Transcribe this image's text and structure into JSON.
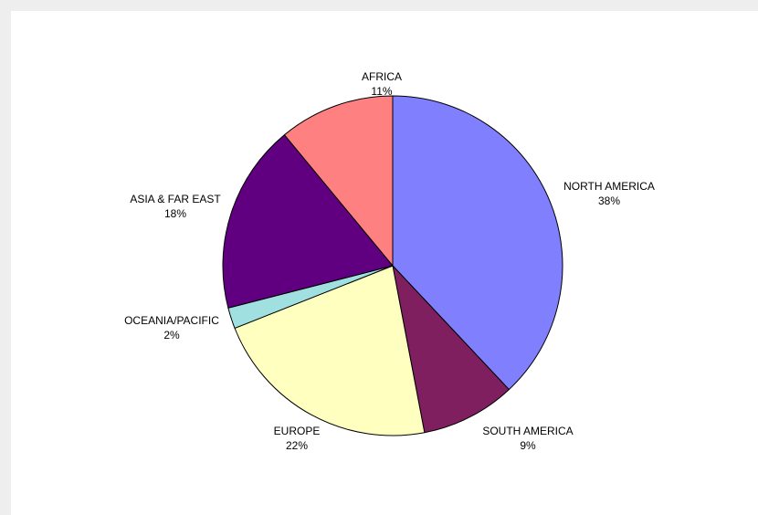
{
  "chart_data": {
    "type": "pie",
    "title": "",
    "start_angle_deg": 0,
    "direction": "clockwise",
    "slices": [
      {
        "label": "NORTH AMERICA",
        "value": 38,
        "percent_label": "38%",
        "color": "#8080FF"
      },
      {
        "label": "SOUTH AMERICA",
        "value": 9,
        "percent_label": "9%",
        "color": "#7F1F5F"
      },
      {
        "label": "EUROPE",
        "value": 22,
        "percent_label": "22%",
        "color": "#FFFFC0"
      },
      {
        "label": "OCEANIA/PACIFIC",
        "value": 2,
        "percent_label": "2%",
        "color": "#A0E0E0"
      },
      {
        "label": "ASIA & FAR EAST",
        "value": 18,
        "percent_label": "18%",
        "color": "#600080"
      },
      {
        "label": "AFRICA",
        "value": 11,
        "percent_label": "11%",
        "color": "#FF8080"
      }
    ],
    "legend": "none"
  }
}
